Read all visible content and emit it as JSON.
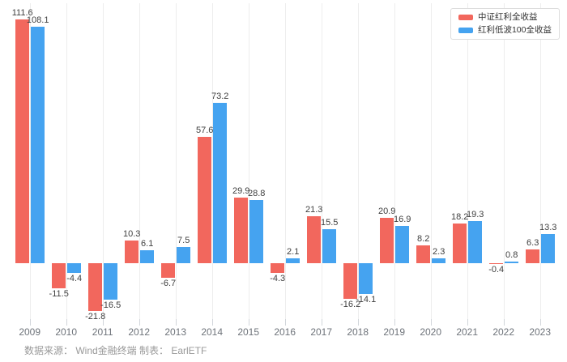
{
  "chart_data": {
    "type": "bar",
    "title": "",
    "xlabel": "",
    "ylabel": "",
    "categories": [
      "2009",
      "2010",
      "2011",
      "2012",
      "2013",
      "2014",
      "2015",
      "2016",
      "2017",
      "2018",
      "2019",
      "2020",
      "2021",
      "2022",
      "2023"
    ],
    "series": [
      {
        "name": "中证红利全收益",
        "color": "#f2675d",
        "values": [
          111.6,
          -11.5,
          -21.8,
          10.3,
          -6.7,
          57.6,
          29.9,
          -4.3,
          21.3,
          -16.2,
          20.9,
          8.2,
          18.2,
          -0.4,
          6.3
        ]
      },
      {
        "name": "红利低波100全收益",
        "color": "#45a3f0",
        "values": [
          108.1,
          -4.4,
          -16.5,
          6.1,
          7.5,
          73.2,
          28.8,
          2.1,
          15.5,
          -14.1,
          16.9,
          2.3,
          19.3,
          0.8,
          13.3
        ]
      }
    ],
    "ylim": [
      -25,
      118
    ],
    "grid": "vertical-category-lines",
    "legend_position": "top-right",
    "value_labels": "one-decimal-on-every-bar"
  },
  "footer": {
    "source_note": "数据来源： Wind金融终端 制表： EarlETF"
  },
  "colors": {
    "background": "#ffffff",
    "gridline": "#ededed",
    "axis_tick": "#d2d6db",
    "value_label": "#404040",
    "axis_label": "#6e737a",
    "source_text": "#999999",
    "legend_border": "#dddddd",
    "legend_text": "#333333"
  }
}
